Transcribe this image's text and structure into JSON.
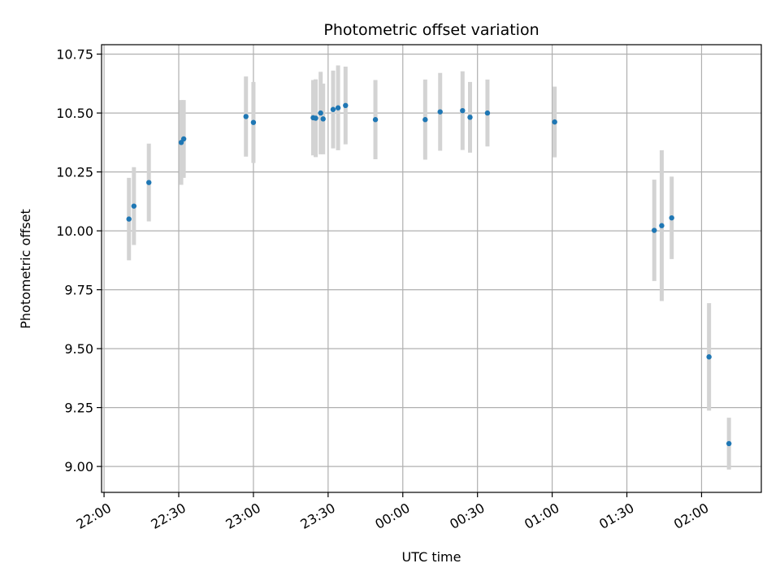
{
  "chart_data": {
    "type": "scatter",
    "title": "Photometric offset variation",
    "xlabel": "UTC time",
    "ylabel": "Photometric offset",
    "x_axis": {
      "kind": "time",
      "range": [
        "21:59",
        "02:24"
      ],
      "ticks": [
        "22:00",
        "22:30",
        "23:00",
        "23:30",
        "00:00",
        "00:30",
        "01:00",
        "01:30",
        "02:00"
      ]
    },
    "y_axis": {
      "range": [
        8.89,
        10.79
      ],
      "ticks": [
        "9.00",
        "9.25",
        "9.50",
        "9.75",
        "10.00",
        "10.25",
        "10.50",
        "10.75"
      ]
    },
    "grid": true,
    "point_color": "#1f77b4",
    "errorbar_color": "#d3d3d3",
    "points": [
      {
        "t": "22:10",
        "y": 10.05,
        "err": 0.175
      },
      {
        "t": "22:12",
        "y": 10.105,
        "err": 0.165
      },
      {
        "t": "22:18",
        "y": 10.205,
        "err": 0.165
      },
      {
        "t": "22:31",
        "y": 10.375,
        "err": 0.18
      },
      {
        "t": "22:32",
        "y": 10.39,
        "err": 0.165
      },
      {
        "t": "22:57",
        "y": 10.485,
        "err": 0.17
      },
      {
        "t": "23:00",
        "y": 10.46,
        "err": 0.172
      },
      {
        "t": "23:24",
        "y": 10.48,
        "err": 0.16
      },
      {
        "t": "23:25",
        "y": 10.478,
        "err": 0.165
      },
      {
        "t": "23:27",
        "y": 10.5,
        "err": 0.175
      },
      {
        "t": "23:28",
        "y": 10.475,
        "err": 0.15
      },
      {
        "t": "23:32",
        "y": 10.515,
        "err": 0.165
      },
      {
        "t": "23:34",
        "y": 10.522,
        "err": 0.18
      },
      {
        "t": "23:37",
        "y": 10.532,
        "err": 0.165
      },
      {
        "t": "23:49",
        "y": 10.472,
        "err": 0.168
      },
      {
        "t": "00:09",
        "y": 10.472,
        "err": 0.17
      },
      {
        "t": "00:15",
        "y": 10.505,
        "err": 0.165
      },
      {
        "t": "00:24",
        "y": 10.51,
        "err": 0.167
      },
      {
        "t": "00:27",
        "y": 10.482,
        "err": 0.15
      },
      {
        "t": "00:34",
        "y": 10.5,
        "err": 0.142
      },
      {
        "t": "01:01",
        "y": 10.462,
        "err": 0.15
      },
      {
        "t": "01:41",
        "y": 10.002,
        "err": 0.215
      },
      {
        "t": "01:44",
        "y": 10.022,
        "err": 0.32
      },
      {
        "t": "01:48",
        "y": 10.055,
        "err": 0.175
      },
      {
        "t": "02:03",
        "y": 9.465,
        "err": 0.228
      },
      {
        "t": "02:11",
        "y": 9.097,
        "err": 0.11
      }
    ]
  }
}
